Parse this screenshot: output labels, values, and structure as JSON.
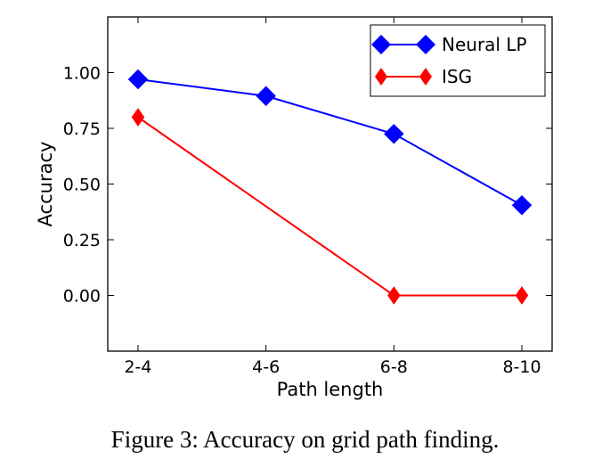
{
  "caption": "Figure 3: Accuracy on grid path finding.",
  "chart_data": {
    "type": "line",
    "title": "",
    "xlabel": "Path length",
    "ylabel": "Accuracy",
    "categories": [
      "2-4",
      "4-6",
      "6-8",
      "8-10"
    ],
    "ylim": [
      -0.25,
      1.25
    ],
    "yticks": [
      0.0,
      0.25,
      0.5,
      0.75,
      1.0
    ],
    "ytick_labels": [
      "0.00",
      "0.25",
      "0.50",
      "0.75",
      "1.00"
    ],
    "grid": false,
    "legend_position": "top-right",
    "series": [
      {
        "name": "Neural LP",
        "color": "#0000ff",
        "marker": "D",
        "values": [
          0.97,
          0.895,
          0.725,
          0.405
        ],
        "x": [
          "2-4",
          "4-6",
          "6-8",
          "8-10"
        ]
      },
      {
        "name": "ISG",
        "color": "#ff0000",
        "marker": "d",
        "values": [
          0.8,
          0.0,
          0.0
        ],
        "x": [
          "2-4",
          "6-8",
          "8-10"
        ]
      }
    ]
  }
}
